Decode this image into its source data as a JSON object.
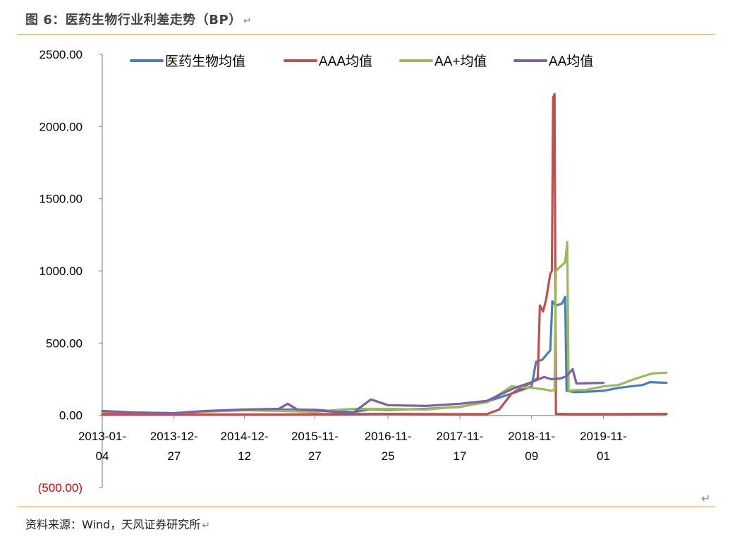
{
  "header": {
    "title": "图 6：医药生物行业利差走势（BP）",
    "return_mark": "↵"
  },
  "footer": {
    "source": "资料来源：Wind，天风证券研究所",
    "return_mark": "↵"
  },
  "page_end_mark": "↵",
  "colors": {
    "blue": "#4a7ebb",
    "red": "#c0504d",
    "green": "#9bbb59",
    "purple": "#7f5fa6",
    "negative_label": "#e60000",
    "rule": "#e3a35b"
  },
  "chart_data": {
    "type": "line",
    "title": "",
    "xlabel": "",
    "ylabel": "",
    "ylim": [
      -500,
      2500
    ],
    "yticks": [
      -500,
      0,
      500,
      1000,
      1500,
      2000,
      2500
    ],
    "ytick_labels": [
      "(500.00)",
      "0.00",
      "500.00",
      "1000.00",
      "1500.00",
      "2000.00",
      "2500.00"
    ],
    "xlim": [
      "2013-01-04",
      "2020-09-10"
    ],
    "xticks": [
      "2013-01-04",
      "2013-12-27",
      "2014-12-12",
      "2015-11-27",
      "2016-11-25",
      "2017-11-17",
      "2018-11-09",
      "2019-11-01"
    ],
    "xtick_labels": [
      [
        "2013-01-",
        "04"
      ],
      [
        "2013-12-",
        "27"
      ],
      [
        "2014-12-",
        "12"
      ],
      [
        "2015-11-",
        "27"
      ],
      [
        "2016-11-",
        "25"
      ],
      [
        "2017-11-",
        "17"
      ],
      [
        "2018-11-",
        "09"
      ],
      [
        "2019-11-",
        "01"
      ]
    ],
    "legend_position": "top",
    "series": [
      {
        "name": "医药生物均值",
        "color": "#4a7ebb",
        "points": [
          [
            "2013-01-04",
            20
          ],
          [
            "2013-06-01",
            15
          ],
          [
            "2013-12-27",
            15
          ],
          [
            "2014-06-01",
            28
          ],
          [
            "2014-12-12",
            38
          ],
          [
            "2015-06-01",
            40
          ],
          [
            "2015-11-27",
            38
          ],
          [
            "2016-06-01",
            22
          ],
          [
            "2016-09-01",
            42
          ],
          [
            "2016-11-25",
            38
          ],
          [
            "2017-06-01",
            45
          ],
          [
            "2017-11-17",
            58
          ],
          [
            "2018-04-01",
            95
          ],
          [
            "2018-08-01",
            150
          ],
          [
            "2018-11-09",
            200
          ],
          [
            "2018-12-01",
            370
          ],
          [
            "2019-01-01",
            385
          ],
          [
            "2019-02-10",
            450
          ],
          [
            "2019-02-20",
            790
          ],
          [
            "2019-03-10",
            760
          ],
          [
            "2019-04-10",
            775
          ],
          [
            "2019-04-25",
            820
          ],
          [
            "2019-05-02",
            170
          ],
          [
            "2019-06-15",
            160
          ],
          [
            "2019-09-01",
            165
          ],
          [
            "2019-11-01",
            170
          ],
          [
            "2020-01-15",
            190
          ],
          [
            "2020-03-15",
            200
          ],
          [
            "2020-05-15",
            210
          ],
          [
            "2020-06-20",
            230
          ],
          [
            "2020-09-10",
            225
          ]
        ]
      },
      {
        "name": "AAA均值",
        "color": "#c0504d",
        "points": [
          [
            "2013-01-04",
            5
          ],
          [
            "2014-06-01",
            5
          ],
          [
            "2014-12-12",
            5
          ],
          [
            "2015-06-01",
            5
          ],
          [
            "2015-11-27",
            8
          ],
          [
            "2016-11-25",
            10
          ],
          [
            "2017-11-17",
            8
          ],
          [
            "2018-04-01",
            8
          ],
          [
            "2018-06-01",
            40
          ],
          [
            "2018-08-01",
            150
          ],
          [
            "2018-10-01",
            200
          ],
          [
            "2018-11-09",
            225
          ],
          [
            "2018-12-10",
            260
          ],
          [
            "2018-12-20",
            760
          ],
          [
            "2019-01-05",
            720
          ],
          [
            "2019-01-20",
            800
          ],
          [
            "2019-02-10",
            980
          ],
          [
            "2019-02-18",
            1000
          ],
          [
            "2019-02-24",
            2200
          ],
          [
            "2019-03-03",
            2225
          ],
          [
            "2019-03-10",
            10
          ],
          [
            "2019-06-01",
            8
          ],
          [
            "2019-11-01",
            8
          ],
          [
            "2020-09-10",
            10
          ]
        ]
      },
      {
        "name": "AA+均值",
        "color": "#9bbb59",
        "points": [
          [
            "2013-01-04",
            25
          ],
          [
            "2013-06-01",
            20
          ],
          [
            "2013-12-27",
            15
          ],
          [
            "2014-06-01",
            25
          ],
          [
            "2014-12-12",
            35
          ],
          [
            "2015-06-01",
            30
          ],
          [
            "2015-11-27",
            25
          ],
          [
            "2016-06-01",
            45
          ],
          [
            "2016-11-25",
            45
          ],
          [
            "2017-06-01",
            40
          ],
          [
            "2017-11-17",
            60
          ],
          [
            "2018-04-01",
            90
          ],
          [
            "2018-08-01",
            200
          ],
          [
            "2018-11-09",
            190
          ],
          [
            "2019-01-10",
            180
          ],
          [
            "2019-02-15",
            170
          ],
          [
            "2019-03-03",
            175
          ],
          [
            "2019-03-10",
            1000
          ],
          [
            "2019-04-01",
            1030
          ],
          [
            "2019-04-25",
            1060
          ],
          [
            "2019-05-05",
            1200
          ],
          [
            "2019-05-12",
            170
          ],
          [
            "2019-06-15",
            175
          ],
          [
            "2019-08-01",
            175
          ],
          [
            "2019-11-01",
            200
          ],
          [
            "2020-01-15",
            210
          ],
          [
            "2020-04-01",
            250
          ],
          [
            "2020-07-01",
            290
          ],
          [
            "2020-09-10",
            295
          ]
        ]
      },
      {
        "name": "AA均值",
        "color": "#7f5fa6",
        "points": [
          [
            "2013-01-04",
            30
          ],
          [
            "2013-06-01",
            20
          ],
          [
            "2013-12-27",
            15
          ],
          [
            "2014-06-01",
            30
          ],
          [
            "2014-12-12",
            40
          ],
          [
            "2015-06-01",
            45
          ],
          [
            "2015-07-15",
            80
          ],
          [
            "2015-09-01",
            40
          ],
          [
            "2015-11-27",
            35
          ],
          [
            "2016-06-01",
            15
          ],
          [
            "2016-09-01",
            110
          ],
          [
            "2016-11-25",
            70
          ],
          [
            "2017-06-01",
            65
          ],
          [
            "2017-11-17",
            80
          ],
          [
            "2018-04-01",
            100
          ],
          [
            "2018-08-01",
            180
          ],
          [
            "2018-11-09",
            230
          ],
          [
            "2019-01-10",
            265
          ],
          [
            "2019-02-15",
            250
          ],
          [
            "2019-04-01",
            255
          ],
          [
            "2019-05-01",
            270
          ],
          [
            "2019-06-01",
            320
          ],
          [
            "2019-06-20",
            220
          ],
          [
            "2019-11-01",
            225
          ]
        ]
      }
    ]
  }
}
